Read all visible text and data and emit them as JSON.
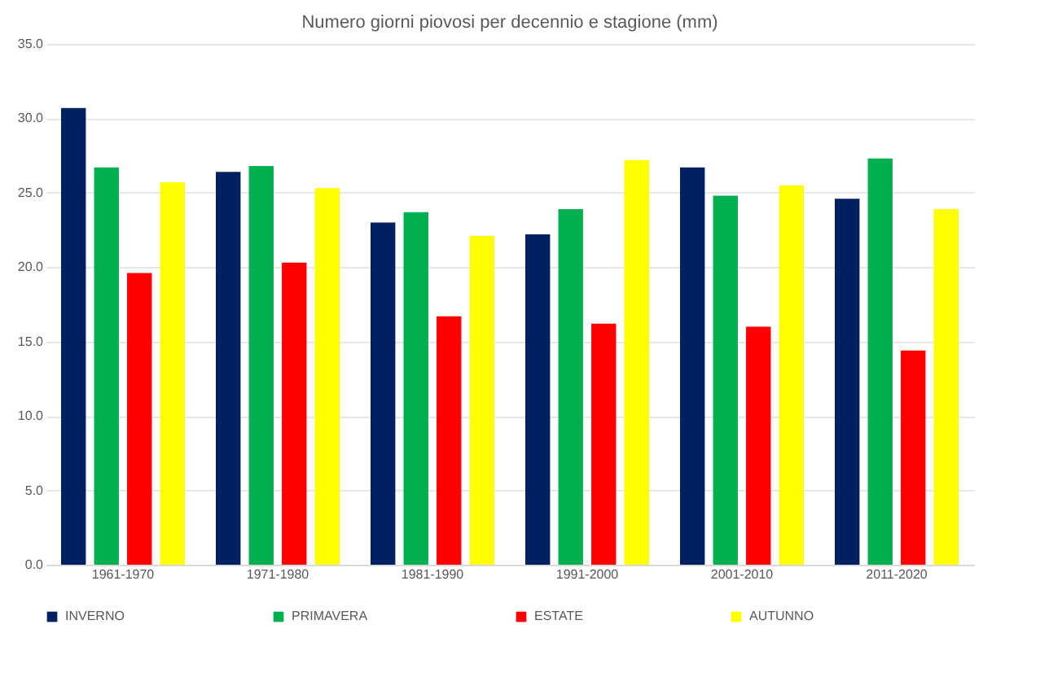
{
  "chart_data": {
    "type": "bar",
    "title": "Numero giorni piovosi per decennio e stagione (mm)",
    "categories": [
      "1961-1970",
      "1971-1980",
      "1981-1990",
      "1991-2000",
      "2001-2010",
      "2011-2020"
    ],
    "series": [
      {
        "name": "INVERNO",
        "color": "#002060",
        "values": [
          30.7,
          26.4,
          23.0,
          22.2,
          26.7,
          24.6
        ]
      },
      {
        "name": "PRIMAVERA",
        "color": "#00b050",
        "values": [
          26.7,
          26.8,
          23.7,
          23.9,
          24.8,
          27.3
        ]
      },
      {
        "name": "ESTATE",
        "color": "#ff0000",
        "values": [
          19.6,
          20.3,
          16.7,
          16.2,
          16.0,
          14.4
        ]
      },
      {
        "name": "AUTUNNO",
        "color": "#ffff00",
        "values": [
          25.7,
          25.3,
          22.1,
          27.2,
          25.5,
          23.9
        ]
      }
    ],
    "ylim": [
      0,
      35
    ],
    "yticks": [
      {
        "value": 0,
        "label": "0.0"
      },
      {
        "value": 5,
        "label": "5.0"
      },
      {
        "value": 10,
        "label": "10.0"
      },
      {
        "value": 15,
        "label": "15.0"
      },
      {
        "value": 20,
        "label": "20.0"
      },
      {
        "value": 25,
        "label": "25.0"
      },
      {
        "value": 30,
        "label": "30.0"
      },
      {
        "value": 35,
        "label": "35.0"
      }
    ],
    "grid": "y",
    "legend": "bottom"
  }
}
